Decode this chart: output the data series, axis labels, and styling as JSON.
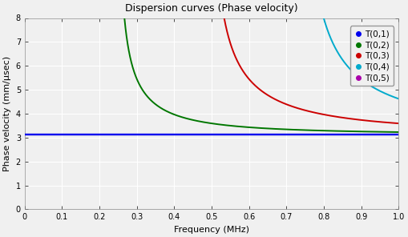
{
  "title": "Dispersion curves (Phase velocity)",
  "xlabel": "Frequency (MHz)",
  "ylabel": "Phase velocity (mm/µsec)",
  "xlim": [
    0,
    1.0
  ],
  "ylim": [
    0,
    8
  ],
  "yticks": [
    0,
    1,
    2,
    3,
    4,
    5,
    6,
    7,
    8
  ],
  "xticks": [
    0,
    0.1,
    0.2,
    0.3,
    0.4,
    0.5,
    0.6,
    0.7,
    0.8,
    0.9,
    1.0
  ],
  "phase_velocity_asymptote": 3.13,
  "modes": [
    {
      "name": "T(0,1)",
      "color": "#0000ee",
      "cutoff": 0.0
    },
    {
      "name": "T(0,2)",
      "color": "#007700",
      "cutoff": 0.2455
    },
    {
      "name": "T(0,3)",
      "color": "#cc0000",
      "cutoff": 0.491
    },
    {
      "name": "T(0,4)",
      "color": "#00aacc",
      "cutoff": 0.736
    },
    {
      "name": "T(0,5)",
      "color": "#aa00aa",
      "cutoff": 0.982
    }
  ],
  "background_color": "#f0f0f0",
  "plot_bg_color": "#f0f0f0",
  "grid_color": "#ffffff",
  "title_fontsize": 9,
  "label_fontsize": 8,
  "tick_fontsize": 7,
  "legend_fontsize": 7.5,
  "linewidth": 1.4
}
